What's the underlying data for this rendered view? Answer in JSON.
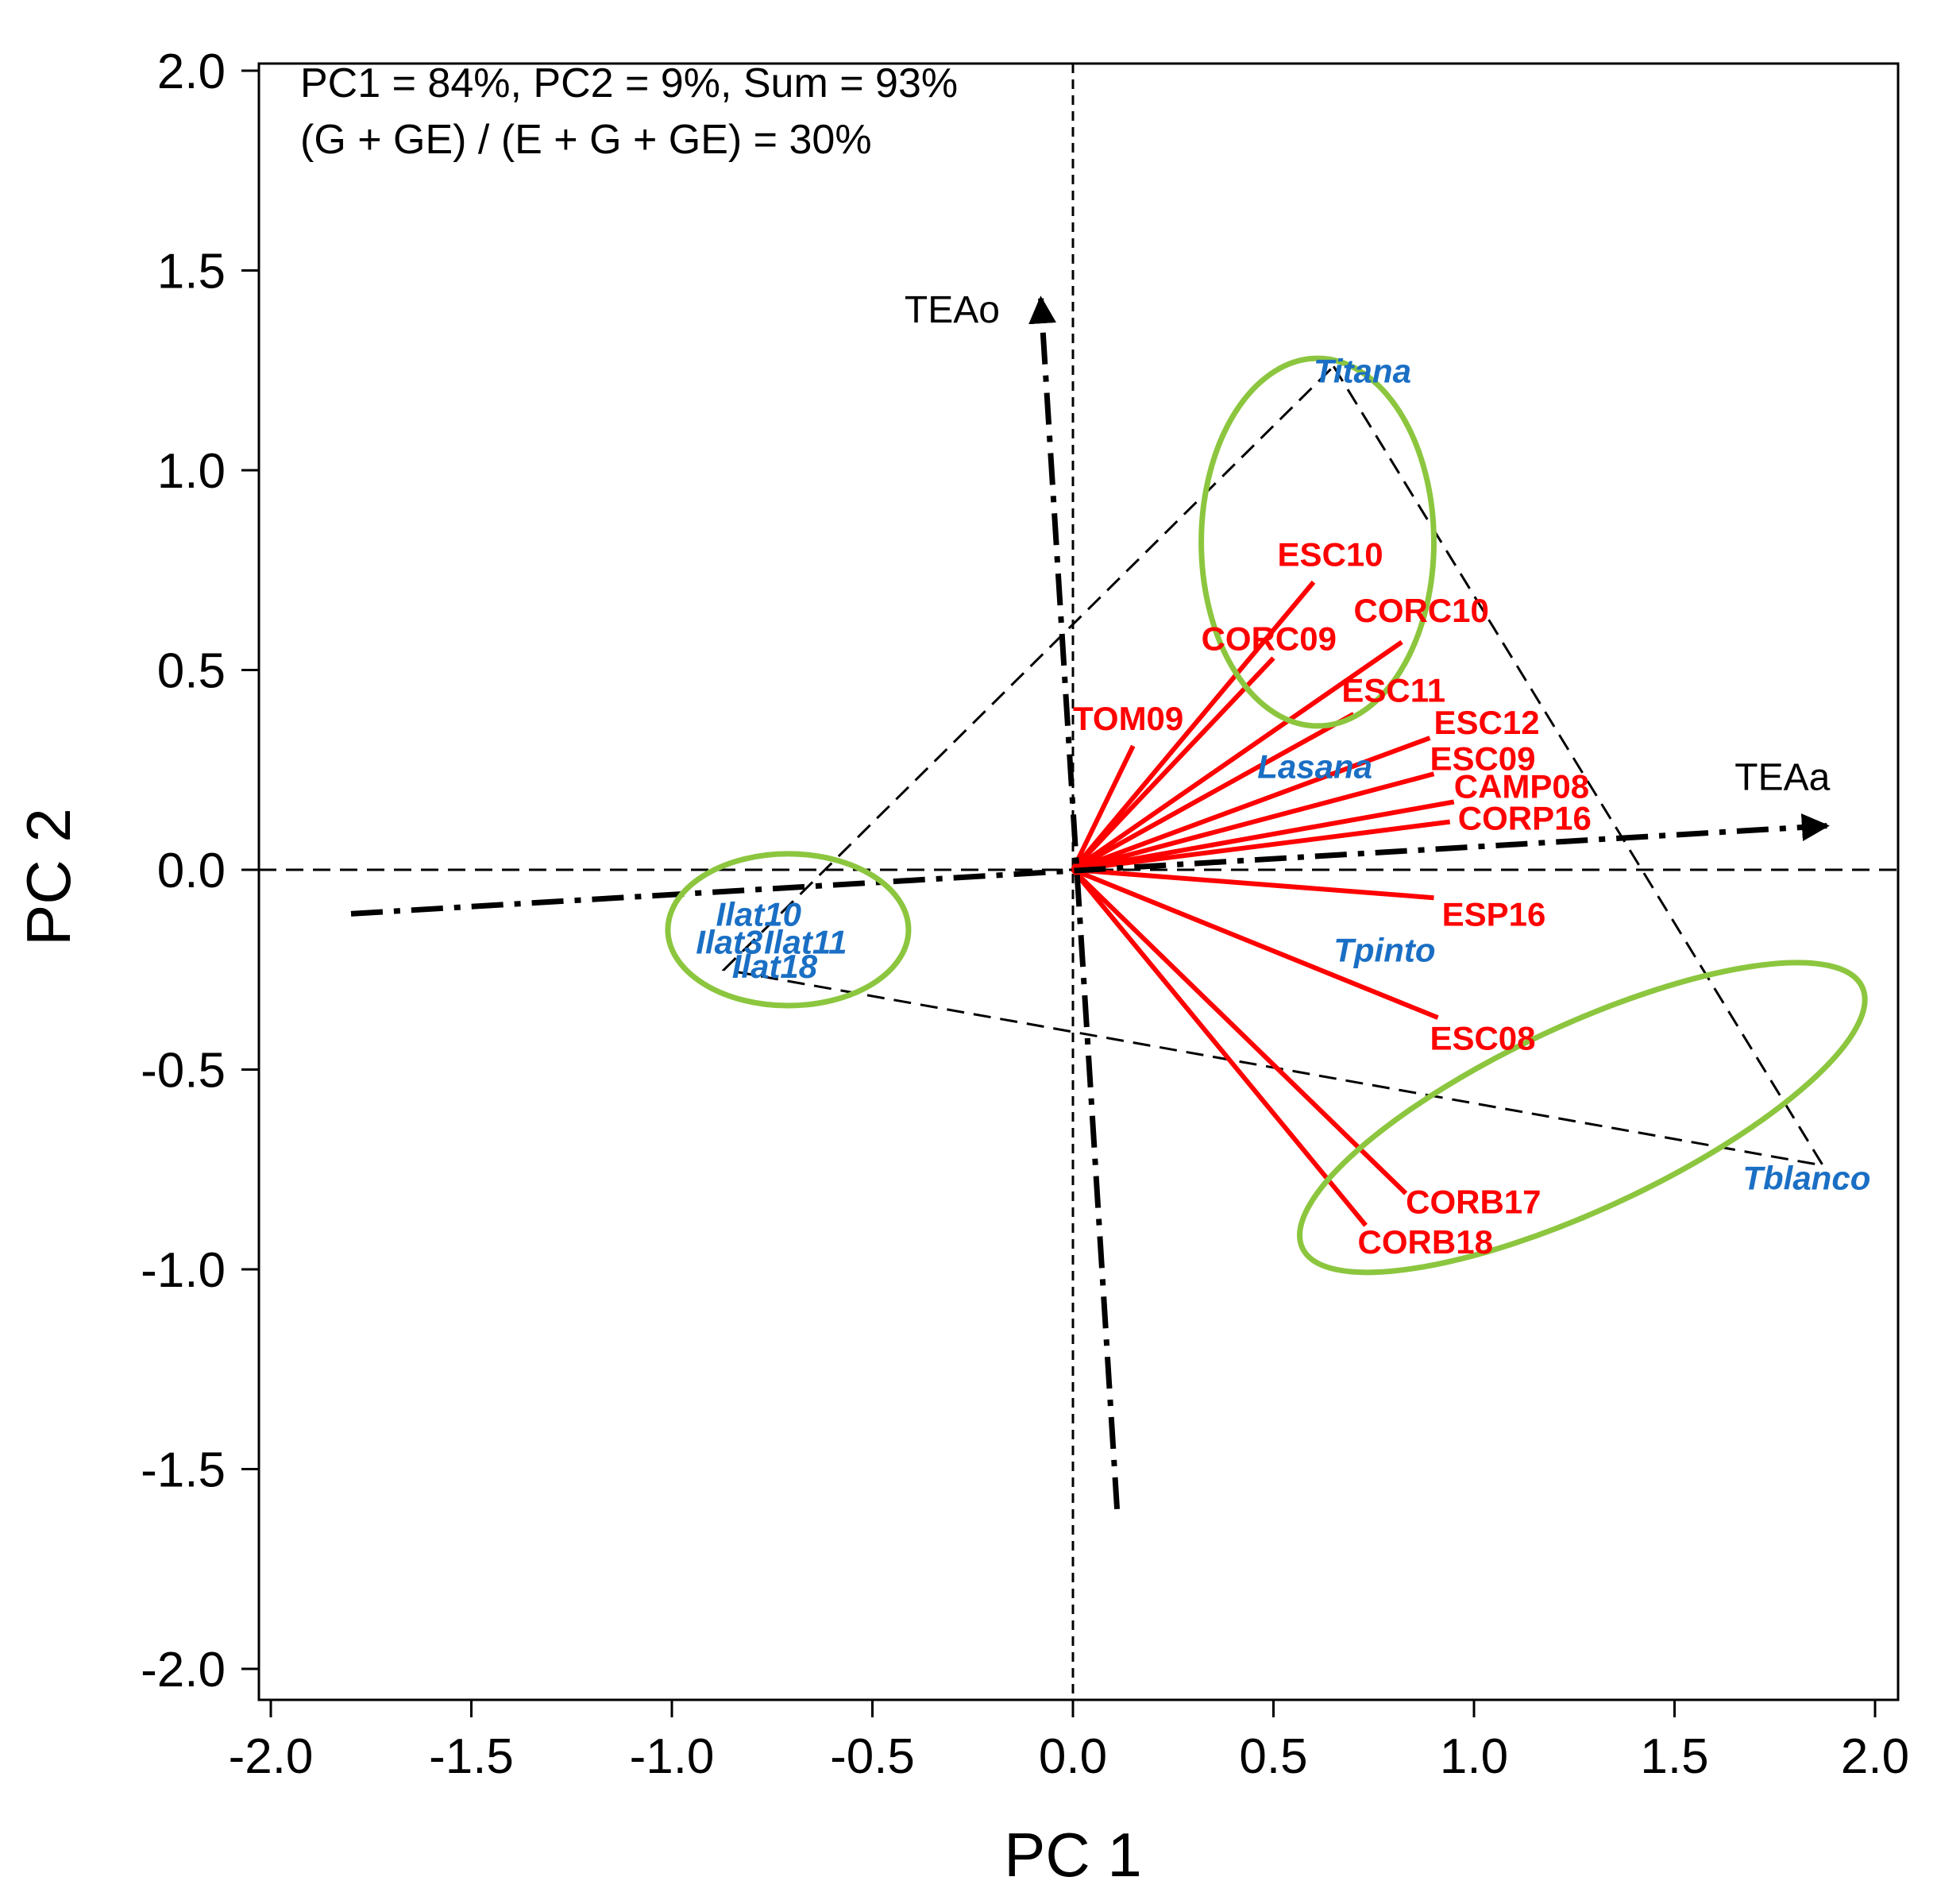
{
  "chart_data": {
    "type": "scatter",
    "subtype": "GGE biplot",
    "xlabel": "PC 1",
    "ylabel": "PC 2",
    "xlim": [
      -2.05,
      2.05
    ],
    "ylim": [
      -2.05,
      2.05
    ],
    "xticks": [
      -2.0,
      -1.5,
      -1.0,
      -0.5,
      0.0,
      0.5,
      1.0,
      1.5,
      2.0
    ],
    "yticks": [
      -2.0,
      -1.5,
      -1.0,
      -0.5,
      0.0,
      0.5,
      1.0,
      1.5,
      2.0
    ],
    "xtick_labels": [
      "-2.0",
      "-1.5",
      "-1.0",
      "-0.5",
      "0.0",
      "0.5",
      "1.0",
      "1.5",
      "2.0"
    ],
    "ytick_labels": [
      "-2.0",
      "-1.5",
      "-1.0",
      "-0.5",
      "0.0",
      "0.5",
      "1.0",
      "1.5",
      "2.0"
    ],
    "annotations": [
      "PC1 =  84%, PC2 = 9%, Sum = 93%",
      "(G + GE) / (E + G + GE) = 30%"
    ],
    "colors": {
      "environment": "#ff0000",
      "genotype": "#1a6fc4",
      "group_ellipse": "#8cc63f",
      "axis": "#000000"
    },
    "environments": [
      {
        "name": "ESC10",
        "x": 0.6,
        "y": 0.72,
        "label_x": 0.51,
        "label_y": 0.76
      },
      {
        "name": "CORC09",
        "x": 0.5,
        "y": 0.53,
        "label_x": 0.32,
        "label_y": 0.55
      },
      {
        "name": "CORC10",
        "x": 0.82,
        "y": 0.57,
        "label_x": 0.7,
        "label_y": 0.62
      },
      {
        "name": "TOM09",
        "x": 0.15,
        "y": 0.31,
        "label_x": 0.0,
        "label_y": 0.35
      },
      {
        "name": "ESC11",
        "x": 0.7,
        "y": 0.39,
        "label_x": 0.67,
        "label_y": 0.42
      },
      {
        "name": "ESC12",
        "x": 0.89,
        "y": 0.33,
        "label_x": 0.9,
        "label_y": 0.34
      },
      {
        "name": "ESC09",
        "x": 0.9,
        "y": 0.24,
        "label_x": 0.89,
        "label_y": 0.25
      },
      {
        "name": "CAMP08",
        "x": 0.95,
        "y": 0.17,
        "label_x": 0.95,
        "label_y": 0.18
      },
      {
        "name": "CORP16",
        "x": 0.94,
        "y": 0.12,
        "label_x": 0.96,
        "label_y": 0.1
      },
      {
        "name": "ESP16",
        "x": 0.9,
        "y": -0.07,
        "label_x": 0.92,
        "label_y": -0.14
      },
      {
        "name": "ESC08",
        "x": 0.91,
        "y": -0.37,
        "label_x": 0.89,
        "label_y": -0.45
      },
      {
        "name": "CORB17",
        "x": 0.83,
        "y": -0.81,
        "label_x": 0.83,
        "label_y": -0.86
      },
      {
        "name": "CORB18",
        "x": 0.73,
        "y": -0.89,
        "label_x": 0.71,
        "label_y": -0.96
      }
    ],
    "genotypes": [
      {
        "name": "Titana",
        "x": 0.6,
        "y": 1.22
      },
      {
        "name": "Lasana",
        "x": 0.46,
        "y": 0.23
      },
      {
        "name": "Tpinto",
        "x": 0.65,
        "y": -0.23
      },
      {
        "name": "Tblanco",
        "x": 1.67,
        "y": -0.8
      },
      {
        "name": "Ilat10",
        "x": -0.89,
        "y": -0.14
      },
      {
        "name": "Ilat3",
        "x": -0.94,
        "y": -0.21
      },
      {
        "name": "Ilat11",
        "x": -0.77,
        "y": -0.21
      },
      {
        "name": "Ilat18",
        "x": -0.85,
        "y": -0.27
      }
    ],
    "polygon_vertices": [
      [
        0.65,
        1.26
      ],
      [
        1.87,
        -0.74
      ],
      [
        -0.87,
        -0.25
      ]
    ],
    "group_ellipses": [
      {
        "cx": 0.61,
        "cy": 0.82,
        "rx": 0.29,
        "ry": 0.46,
        "angle_deg": 0
      },
      {
        "cx": -0.71,
        "cy": -0.15,
        "rx": 0.3,
        "ry": 0.19,
        "angle_deg": 0
      },
      {
        "cx": 1.27,
        "cy": -0.62,
        "rx": 0.77,
        "ry": 0.23,
        "angle_deg": -25
      }
    ],
    "tea_axes": [
      {
        "name": "TEAa",
        "from": [
          -1.8,
          -0.11
        ],
        "to": [
          1.88,
          0.11
        ],
        "label_x": 1.65,
        "label_y": 0.2
      },
      {
        "name": "TEAo",
        "from": [
          0.11,
          -1.6
        ],
        "to": [
          -0.08,
          1.43
        ],
        "label_x": -0.42,
        "label_y": 1.37
      }
    ]
  }
}
